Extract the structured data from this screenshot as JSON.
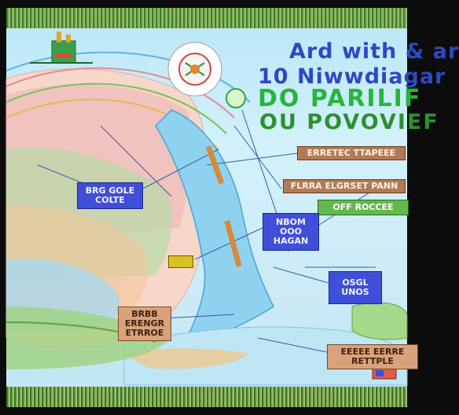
{
  "title": {
    "line1": "Ard with & ar",
    "line2": "10 Niwwdiagar",
    "line3": "DO PARILIF",
    "line4": "OU POVOVIEF"
  },
  "labels": {
    "left": "BRG GOLE\nCOLTE",
    "middle": "NBOM\nOOO\nHAGAN",
    "right": "OSGL\nUNOS",
    "top_right_1": "ERRETEC TTAPEEE",
    "top_right_2": "FLRRA ELGRSET PANN",
    "top_right_3": "OFF ROCCEE",
    "bottom_left": "BRBB\nERENGR\nETRROE",
    "bottom_right": "EEEEE EERRE\nRETTPLE"
  },
  "colors": {
    "sky": "#c7ecf9",
    "title_blue": "#2b49c6",
    "title_green": "#27b53c",
    "label_blue": "#3f4fd9",
    "label_tan": "#d9a27a",
    "grass": "#6aa24a"
  }
}
